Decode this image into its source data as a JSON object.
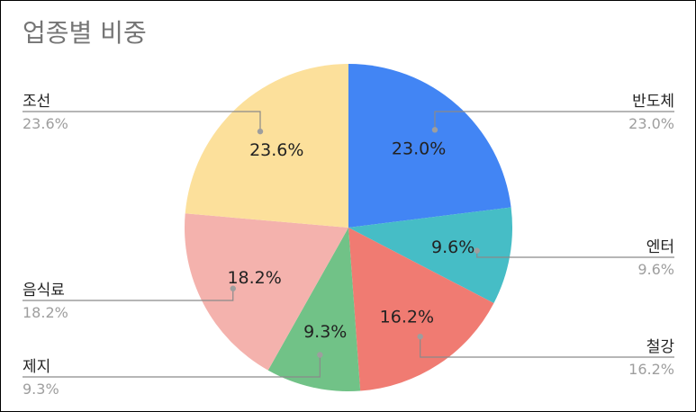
{
  "chart_data": {
    "type": "pie",
    "title": "업종별 비중",
    "legend": "labels-outside",
    "slices": [
      {
        "label": "반도체",
        "value": 23.0,
        "display": "23.0%",
        "color": "#4285f4"
      },
      {
        "label": "엔터",
        "value": 9.6,
        "display": "9.6%",
        "color": "#46bdc6"
      },
      {
        "label": "철강",
        "value": 16.2,
        "display": "16.2%",
        "color": "#f07b72"
      },
      {
        "label": "제지",
        "value": 9.3,
        "display": "9.3%",
        "color": "#71c287"
      },
      {
        "label": "음식료",
        "value": 18.2,
        "display": "18.2%",
        "color": "#f4b2ad"
      },
      {
        "label": "조선",
        "value": 23.6,
        "display": "23.6%",
        "color": "#fce09b"
      }
    ]
  }
}
